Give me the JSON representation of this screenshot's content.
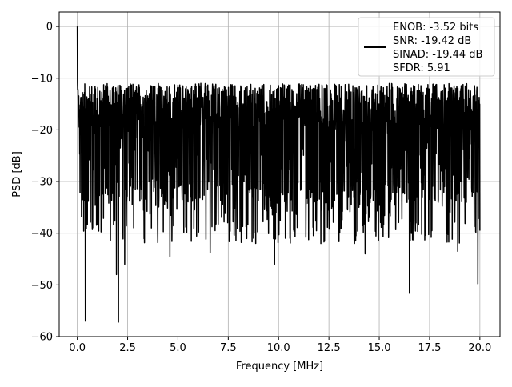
{
  "chart_data": {
    "type": "line",
    "title": "",
    "xlabel": "Frequency [MHz]",
    "ylabel": "PSD [dB]",
    "xlim": [
      -0.9,
      21.0
    ],
    "ylim": [
      -60,
      2.8
    ],
    "xticks": [
      0.0,
      2.5,
      5.0,
      7.5,
      10.0,
      12.5,
      15.0,
      17.5,
      20.0
    ],
    "xtick_labels": [
      "0.0",
      "2.5",
      "5.0",
      "7.5",
      "10.0",
      "12.5",
      "15.0",
      "17.5",
      "20.0"
    ],
    "yticks": [
      0,
      -10,
      -20,
      -30,
      -40,
      -50,
      -60
    ],
    "ytick_labels": [
      "0",
      "−10",
      "−20",
      "−30",
      "−40",
      "−50",
      "−60"
    ],
    "grid": true,
    "legend_position": "top-right",
    "series": [
      {
        "color": "#000000",
        "x_range": [
          0.0,
          20.0
        ],
        "peak": {
          "x": 0.0,
          "y": 0.0
        },
        "noise_band": [
          -34,
          -11
        ],
        "notable_dips": [
          {
            "x": 0.4,
            "y": -57.0
          },
          {
            "x": 1.95,
            "y": -48.0
          },
          {
            "x": 2.05,
            "y": -57.2
          },
          {
            "x": 2.35,
            "y": -46.0
          },
          {
            "x": 9.8,
            "y": -46.0
          },
          {
            "x": 16.5,
            "y": -51.6
          },
          {
            "x": 19.9,
            "y": -49.8
          },
          {
            "x": 4.6,
            "y": -44.5
          },
          {
            "x": 14.3,
            "y": -44.0
          },
          {
            "x": 18.9,
            "y": -43.5
          },
          {
            "x": 12.1,
            "y": -42.0
          },
          {
            "x": 6.6,
            "y": -43.8
          }
        ]
      }
    ],
    "legend": {
      "lines": [
        "ENOB: -3.52 bits",
        "SNR: -19.42 dB",
        "SINAD: -19.44 dB",
        "SFDR: 5.91"
      ]
    }
  }
}
